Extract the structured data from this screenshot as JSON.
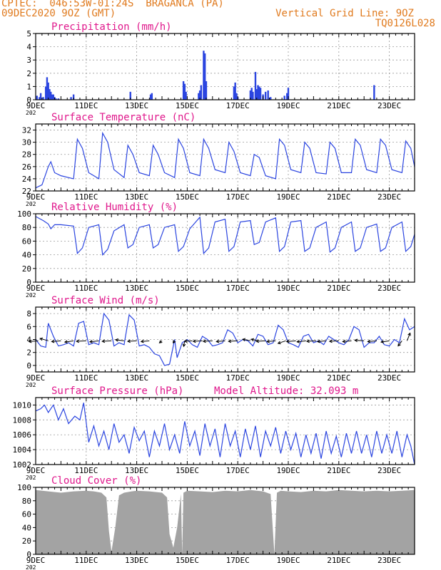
{
  "header": {
    "line1": "CPTEC:  046:53W-01:24S  BRAGANCA (PA)",
    "line2": "09DEC2020 9OZ (GMT)",
    "grid_note": "Vertical Grid Line: 9OZ",
    "code": "TQ0126L028"
  },
  "colors": {
    "header": "#e07a1e",
    "title": "#e0188c",
    "series": "#2b45e0",
    "cloud": "#a3a3a3",
    "arrow": "#000000"
  },
  "x_axis": {
    "days": [
      9,
      24
    ],
    "tick_labels": [
      "9DEC",
      "11DEC",
      "13DEC",
      "15DEC",
      "17DEC",
      "19DEC",
      "21DEC",
      "23DEC"
    ],
    "tick_days": [
      9,
      11,
      13,
      15,
      17,
      19,
      21,
      23
    ],
    "sub_label": "202"
  },
  "chart_data": [
    {
      "type": "bar",
      "title": "Precipitation (mm/h)",
      "ylim": [
        0,
        5
      ],
      "yticks": [
        0,
        1,
        2,
        3,
        4,
        5
      ],
      "grid": true,
      "series": [
        {
          "x": [
            9.05,
            9.15,
            9.2,
            9.3,
            9.4,
            9.45,
            9.5,
            9.55,
            9.6,
            9.65,
            9.7,
            9.75,
            9.8,
            9.9,
            10.4,
            10.5,
            12.75,
            13.55,
            13.6,
            14.85,
            14.9,
            14.95,
            15.45,
            15.5,
            15.55,
            15.65,
            15.7,
            15.75,
            16.85,
            16.9,
            16.95,
            17.0,
            17.5,
            17.55,
            17.6,
            17.7,
            17.75,
            17.8,
            17.85,
            17.9,
            18.0,
            18.1,
            18.2,
            18.3,
            18.85,
            18.95,
            19.0,
            22.4
          ],
          "values": [
            0.3,
            0.2,
            0.5,
            0.2,
            1.0,
            1.7,
            1.3,
            0.8,
            0.6,
            0.4,
            0.4,
            0.2,
            0.1,
            0.1,
            0.2,
            0.4,
            0.6,
            0.4,
            0.5,
            1.4,
            1.2,
            0.6,
            0.5,
            0.7,
            1.1,
            3.7,
            3.5,
            1.4,
            1.0,
            1.3,
            0.5,
            0.2,
            0.7,
            0.9,
            0.6,
            2.1,
            0.8,
            1.1,
            1.0,
            0.9,
            0.4,
            0.6,
            0.7,
            0.2,
            0.3,
            0.5,
            0.9,
            1.1
          ]
        }
      ]
    },
    {
      "type": "line",
      "title": "Surface Temperature (nC)",
      "ylim": [
        22,
        33
      ],
      "yticks": [
        22,
        24,
        26,
        28,
        30,
        32
      ],
      "grid": true,
      "series": [
        {
          "x": [
            9.0,
            9.25,
            9.5,
            9.6,
            9.75,
            10.0,
            10.5,
            10.65,
            10.85,
            11.1,
            11.5,
            11.65,
            11.85,
            12.1,
            12.5,
            12.65,
            12.85,
            13.1,
            13.5,
            13.65,
            13.85,
            14.1,
            14.5,
            14.65,
            14.85,
            15.1,
            15.5,
            15.65,
            15.85,
            16.1,
            16.5,
            16.65,
            16.85,
            17.1,
            17.5,
            17.65,
            17.85,
            18.1,
            18.5,
            18.65,
            18.85,
            19.1,
            19.5,
            19.65,
            19.85,
            20.1,
            20.5,
            20.65,
            20.85,
            21.1,
            21.5,
            21.65,
            21.85,
            22.1,
            22.5,
            22.65,
            22.85,
            23.1,
            23.5,
            23.65,
            23.85,
            24.0
          ],
          "values": [
            22.5,
            23.0,
            26.0,
            26.8,
            25.0,
            24.5,
            24.0,
            30.5,
            29.0,
            25.0,
            24.0,
            31.5,
            30.0,
            25.5,
            24.2,
            29.5,
            28.0,
            25.0,
            24.5,
            29.5,
            28.0,
            25.0,
            24.2,
            30.5,
            29.0,
            25.0,
            24.5,
            30.5,
            29.0,
            25.5,
            25.0,
            30.0,
            28.5,
            25.0,
            24.5,
            28.0,
            27.5,
            24.5,
            24.0,
            30.5,
            29.5,
            25.5,
            25.0,
            30.0,
            29.0,
            25.0,
            24.8,
            30.0,
            29.0,
            25.0,
            25.0,
            30.5,
            29.5,
            25.5,
            25.0,
            30.5,
            29.5,
            25.5,
            25.0,
            30.2,
            29.0,
            26.0
          ]
        }
      ]
    },
    {
      "type": "line",
      "title": "Relative Humidity (%)",
      "ylim": [
        0,
        100
      ],
      "yticks": [
        0,
        20,
        40,
        60,
        80,
        100
      ],
      "grid": true,
      "series": [
        {
          "x": [
            9.0,
            9.3,
            9.5,
            9.6,
            9.75,
            10.0,
            10.5,
            10.65,
            10.85,
            11.1,
            11.5,
            11.65,
            11.85,
            12.1,
            12.5,
            12.65,
            12.85,
            13.1,
            13.5,
            13.65,
            13.85,
            14.1,
            14.5,
            14.65,
            14.85,
            15.1,
            15.5,
            15.65,
            15.85,
            16.1,
            16.5,
            16.65,
            16.85,
            17.1,
            17.5,
            17.65,
            17.85,
            18.1,
            18.5,
            18.65,
            18.85,
            19.1,
            19.5,
            19.65,
            19.85,
            20.1,
            20.5,
            20.65,
            20.85,
            21.1,
            21.5,
            21.65,
            21.85,
            22.1,
            22.5,
            22.65,
            22.85,
            23.1,
            23.5,
            23.65,
            23.85,
            24.0
          ],
          "values": [
            96,
            90,
            85,
            78,
            84,
            84,
            82,
            42,
            50,
            80,
            84,
            40,
            48,
            75,
            84,
            50,
            55,
            80,
            84,
            50,
            55,
            80,
            84,
            45,
            52,
            78,
            95,
            42,
            50,
            88,
            92,
            45,
            52,
            88,
            90,
            55,
            58,
            88,
            94,
            45,
            52,
            88,
            90,
            45,
            50,
            80,
            88,
            44,
            50,
            80,
            88,
            45,
            50,
            80,
            85,
            45,
            50,
            80,
            88,
            45,
            52,
            70
          ]
        }
      ]
    },
    {
      "type": "line",
      "title": "Surface Wind (m/s)",
      "ylim": [
        -1,
        9
      ],
      "yticks": [
        0,
        2,
        4,
        6,
        8
      ],
      "grid": true,
      "series": [
        {
          "x": [
            9.0,
            9.2,
            9.4,
            9.5,
            9.7,
            9.9,
            10.1,
            10.3,
            10.5,
            10.7,
            10.9,
            11.1,
            11.3,
            11.5,
            11.7,
            11.9,
            12.1,
            12.3,
            12.5,
            12.7,
            12.9,
            13.1,
            13.3,
            13.5,
            13.7,
            13.9,
            14.1,
            14.3,
            14.5,
            14.6,
            14.8,
            15.0,
            15.2,
            15.4,
            15.6,
            15.8,
            16.0,
            16.2,
            16.4,
            16.6,
            16.8,
            17.0,
            17.2,
            17.4,
            17.6,
            17.8,
            18.0,
            18.2,
            18.4,
            18.6,
            18.8,
            19.0,
            19.2,
            19.4,
            19.6,
            19.8,
            20.0,
            20.2,
            20.4,
            20.6,
            20.8,
            21.0,
            21.2,
            21.4,
            21.6,
            21.8,
            22.0,
            22.2,
            22.4,
            22.6,
            22.8,
            23.0,
            23.2,
            23.4,
            23.6,
            23.8,
            24.0
          ],
          "values": [
            4.0,
            3.0,
            2.8,
            6.5,
            4.5,
            3.0,
            3.2,
            3.5,
            3.0,
            6.5,
            6.8,
            3.2,
            3.5,
            3.2,
            8.0,
            7.0,
            3.0,
            3.5,
            3.2,
            7.8,
            7.0,
            3.0,
            3.2,
            2.8,
            1.8,
            1.5,
            0.0,
            0.2,
            4.0,
            1.2,
            3.5,
            4.0,
            3.2,
            2.8,
            4.5,
            4.0,
            3.0,
            3.2,
            3.5,
            5.5,
            5.0,
            3.5,
            4.0,
            3.8,
            3.0,
            4.8,
            4.5,
            3.2,
            3.5,
            6.2,
            5.5,
            3.5,
            3.2,
            2.8,
            4.5,
            4.8,
            3.5,
            3.8,
            3.2,
            4.5,
            4.0,
            3.5,
            3.2,
            4.0,
            6.0,
            5.5,
            2.8,
            3.5,
            3.5,
            4.5,
            3.2,
            3.0,
            4.0,
            3.5,
            7.2,
            5.5,
            6.0
          ]
        }
      ],
      "wind_vectors": {
        "days": [
          9.1,
          9.5,
          10.0,
          10.5,
          11.0,
          11.5,
          12.0,
          12.5,
          13.0,
          13.5,
          14.0,
          14.5,
          14.9,
          15.2,
          15.6,
          16.0,
          16.5,
          17.0,
          17.5,
          17.8,
          18.1,
          18.5,
          18.9,
          19.3,
          19.7,
          20.1,
          20.5,
          21.0,
          21.5,
          22.0,
          22.5,
          23.0,
          23.5,
          23.7
        ],
        "u": [
          -3.6,
          -3.2,
          -3.6,
          -3.4,
          -3.8,
          -3.5,
          -3.6,
          -3.3,
          -3.5,
          -3.2,
          -1.0,
          -0.6,
          -0.4,
          -3.0,
          -3.6,
          -3.6,
          -3.4,
          -3.6,
          -3.0,
          -2.6,
          -3.6,
          -3.4,
          -3.0,
          -3.6,
          -3.5,
          -3.6,
          -3.4,
          -3.6,
          -3.4,
          -3.6,
          -3.5,
          -3.2,
          -1.5,
          1.2
        ],
        "v": [
          -0.3,
          0.9,
          -0.3,
          -0.5,
          -0.2,
          -0.4,
          -0.2,
          0.4,
          -0.2,
          -0.3,
          -0.8,
          -0.8,
          -2.2,
          -0.2,
          -0.2,
          -0.2,
          -0.3,
          -0.2,
          0.6,
          0.6,
          -0.2,
          -0.3,
          -1.0,
          -0.3,
          -0.4,
          -0.2,
          -0.3,
          -0.2,
          -0.3,
          0.2,
          -0.3,
          -0.5,
          -2.0,
          3.0
        ]
      }
    },
    {
      "type": "line",
      "title": "Surface Pressure (hPa)",
      "annotation": "Model Altitude: 32.093 m",
      "ylim": [
        1002,
        1011
      ],
      "yticks": [
        1002,
        1004,
        1006,
        1008,
        1010
      ],
      "grid": true,
      "series": [
        {
          "x": [
            9.0,
            9.2,
            9.35,
            9.5,
            9.7,
            9.9,
            10.1,
            10.3,
            10.55,
            10.75,
            10.9,
            11.1,
            11.3,
            11.5,
            11.7,
            11.9,
            12.1,
            12.3,
            12.5,
            12.7,
            12.9,
            13.1,
            13.3,
            13.5,
            13.7,
            13.9,
            14.1,
            14.3,
            14.5,
            14.7,
            14.9,
            15.1,
            15.3,
            15.5,
            15.7,
            15.9,
            16.1,
            16.3,
            16.5,
            16.7,
            16.9,
            17.1,
            17.3,
            17.5,
            17.7,
            17.9,
            18.1,
            18.3,
            18.5,
            18.7,
            18.9,
            19.1,
            19.3,
            19.5,
            19.7,
            19.9,
            20.1,
            20.3,
            20.5,
            20.7,
            20.9,
            21.1,
            21.3,
            21.5,
            21.7,
            21.9,
            22.1,
            22.3,
            22.5,
            22.7,
            22.9,
            23.1,
            23.3,
            23.5,
            23.7,
            23.85,
            24.0
          ],
          "values": [
            1009.2,
            1009.5,
            1010.0,
            1009.0,
            1010.0,
            1008.0,
            1009.5,
            1007.5,
            1008.5,
            1008.0,
            1010.3,
            1005.0,
            1007.2,
            1004.5,
            1006.5,
            1004.0,
            1007.5,
            1005.0,
            1006.0,
            1003.5,
            1007.0,
            1005.2,
            1006.5,
            1003.0,
            1006.5,
            1004.5,
            1007.5,
            1004.0,
            1006.0,
            1003.5,
            1007.8,
            1004.5,
            1006.5,
            1003.2,
            1007.5,
            1004.5,
            1006.8,
            1003.0,
            1007.5,
            1004.5,
            1006.5,
            1003.0,
            1006.8,
            1004.0,
            1007.2,
            1003.0,
            1006.5,
            1004.5,
            1007.0,
            1003.5,
            1006.5,
            1004.0,
            1006.2,
            1003.0,
            1006.0,
            1003.5,
            1006.2,
            1002.8,
            1006.5,
            1003.5,
            1005.8,
            1003.0,
            1006.2,
            1003.5,
            1006.5,
            1003.5,
            1006.0,
            1003.0,
            1006.5,
            1003.5,
            1006.0,
            1003.5,
            1006.5,
            1003.0,
            1006.0,
            1004.5,
            1002.0
          ]
        }
      ]
    },
    {
      "type": "area",
      "title": "Cloud Cover (%)",
      "ylim": [
        0,
        100
      ],
      "yticks": [
        0,
        20,
        40,
        60,
        80,
        100
      ],
      "grid": true,
      "series": [
        {
          "x": [
            9.0,
            9.5,
            10.0,
            10.5,
            11.0,
            11.3,
            11.6,
            11.8,
            11.9,
            12.0,
            12.15,
            12.3,
            12.5,
            12.8,
            13.0,
            13.5,
            14.0,
            14.2,
            14.3,
            14.45,
            14.6,
            14.75,
            14.8,
            14.85,
            15.0,
            15.5,
            16.0,
            16.5,
            17.0,
            17.5,
            18.0,
            18.3,
            18.45,
            18.55,
            18.7,
            19.0,
            19.5,
            20.0,
            20.5,
            21.0,
            21.5,
            22.0,
            22.5,
            23.0,
            23.5,
            24.0
          ],
          "values": [
            96,
            94,
            92,
            94,
            95,
            94,
            92,
            85,
            35,
            4,
            40,
            88,
            92,
            94,
            95,
            94,
            92,
            85,
            30,
            10,
            40,
            90,
            0,
            92,
            95,
            94,
            93,
            95,
            94,
            96,
            94,
            90,
            0,
            92,
            95,
            94,
            93,
            95,
            94,
            96,
            95,
            94,
            95,
            94,
            95,
            96
          ]
        }
      ]
    }
  ]
}
